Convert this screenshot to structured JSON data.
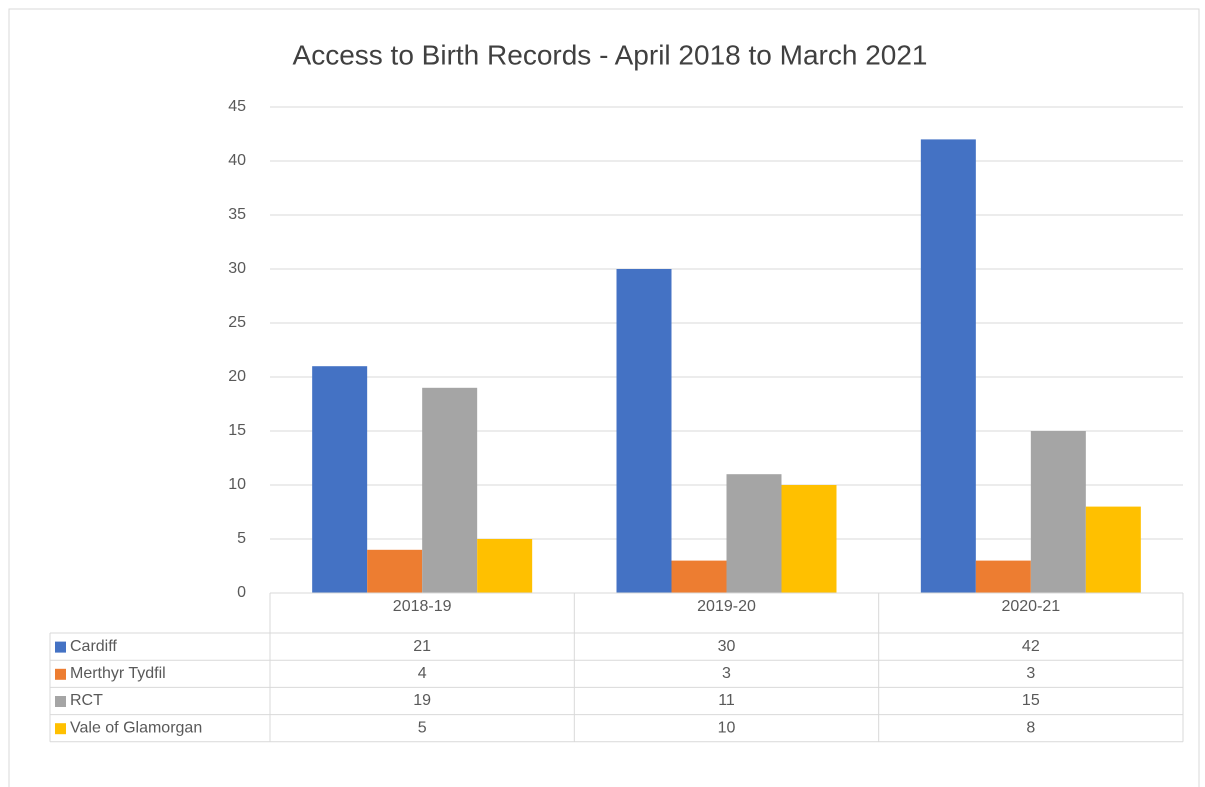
{
  "chart_data": {
    "type": "bar",
    "title": "Access to Birth Records - April 2018 to March 2021",
    "categories": [
      "2018-19",
      "2019-20",
      "2020-21"
    ],
    "series": [
      {
        "name": "Cardiff",
        "color": "#4472c4",
        "values": [
          21,
          30,
          42
        ]
      },
      {
        "name": "Merthyr Tydfil",
        "color": "#ed7d31",
        "values": [
          4,
          3,
          3
        ]
      },
      {
        "name": "RCT",
        "color": "#a5a5a5",
        "values": [
          19,
          11,
          15
        ]
      },
      {
        "name": "Vale of Glamorgan",
        "color": "#ffc000",
        "values": [
          5,
          10,
          8
        ]
      }
    ],
    "ylim": [
      0,
      45
    ],
    "yticks": [
      0,
      5,
      10,
      15,
      20,
      25,
      30,
      35,
      40,
      45
    ],
    "grid": true
  }
}
